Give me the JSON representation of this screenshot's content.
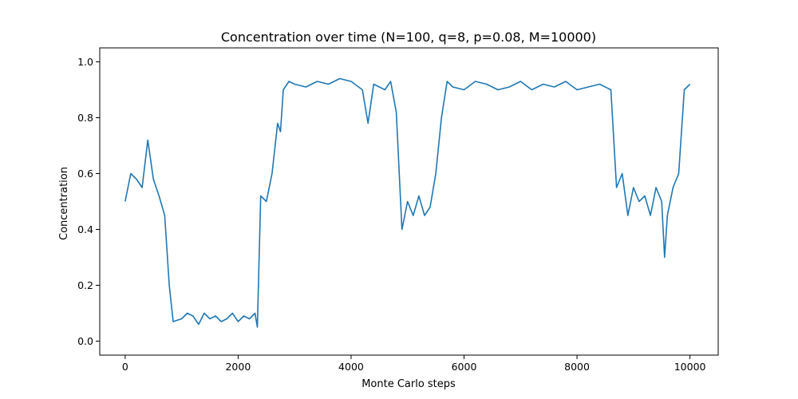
{
  "chart_data": {
    "type": "line",
    "title": "Concentration over time (N=100, q=8, p=0.08, M=10000)",
    "xlabel": "Monte Carlo steps",
    "ylabel": "Concentration",
    "xlim": [
      -450,
      10500
    ],
    "ylim": [
      -0.05,
      1.05
    ],
    "x_ticks": [
      0,
      2000,
      4000,
      6000,
      8000,
      10000
    ],
    "x_tick_labels": [
      "0",
      "2000",
      "4000",
      "6000",
      "8000",
      "10000"
    ],
    "y_ticks": [
      0.0,
      0.2,
      0.4,
      0.6,
      0.8,
      1.0
    ],
    "y_tick_labels": [
      "0.0",
      "0.2",
      "0.4",
      "0.6",
      "0.8",
      "1.0"
    ],
    "grid": false,
    "series": [
      {
        "color": "#1f77b4",
        "x": [
          0,
          100,
          200,
          300,
          400,
          500,
          600,
          700,
          780,
          850,
          1000,
          1100,
          1200,
          1300,
          1400,
          1500,
          1600,
          1700,
          1800,
          1900,
          2000,
          2100,
          2200,
          2300,
          2340,
          2400,
          2500,
          2600,
          2700,
          2750,
          2800,
          2900,
          3000,
          3200,
          3400,
          3600,
          3800,
          4000,
          4200,
          4300,
          4400,
          4500,
          4600,
          4700,
          4800,
          4900,
          5000,
          5100,
          5200,
          5300,
          5400,
          5500,
          5600,
          5700,
          5800,
          6000,
          6200,
          6400,
          6600,
          6800,
          7000,
          7200,
          7400,
          7600,
          7800,
          8000,
          8200,
          8400,
          8600,
          8700,
          8800,
          8900,
          9000,
          9100,
          9200,
          9300,
          9400,
          9500,
          9550,
          9600,
          9700,
          9800,
          9900,
          10000
        ],
        "values": [
          0.5,
          0.6,
          0.58,
          0.55,
          0.72,
          0.58,
          0.52,
          0.45,
          0.2,
          0.07,
          0.08,
          0.1,
          0.09,
          0.06,
          0.1,
          0.08,
          0.09,
          0.07,
          0.08,
          0.1,
          0.07,
          0.09,
          0.08,
          0.1,
          0.05,
          0.52,
          0.5,
          0.6,
          0.78,
          0.75,
          0.9,
          0.93,
          0.92,
          0.91,
          0.93,
          0.92,
          0.94,
          0.93,
          0.9,
          0.78,
          0.92,
          0.91,
          0.9,
          0.93,
          0.82,
          0.4,
          0.5,
          0.45,
          0.52,
          0.45,
          0.48,
          0.6,
          0.8,
          0.93,
          0.91,
          0.9,
          0.93,
          0.92,
          0.9,
          0.91,
          0.93,
          0.9,
          0.92,
          0.91,
          0.93,
          0.9,
          0.91,
          0.92,
          0.9,
          0.55,
          0.6,
          0.45,
          0.55,
          0.5,
          0.52,
          0.45,
          0.55,
          0.5,
          0.3,
          0.45,
          0.55,
          0.6,
          0.9,
          0.92
        ]
      }
    ]
  }
}
